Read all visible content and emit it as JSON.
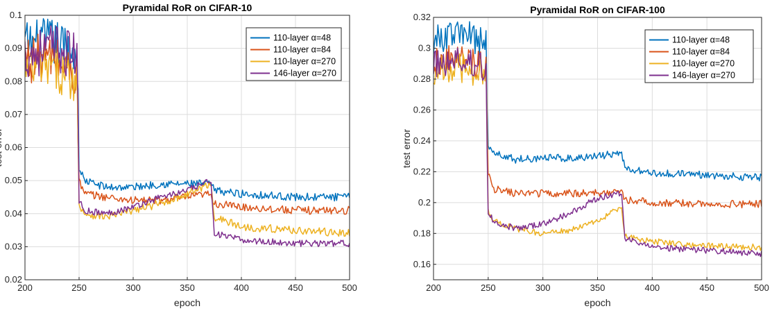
{
  "chart_data": [
    {
      "type": "line",
      "title": "Pyramidal RoR on CIFAR-10",
      "xlabel": "epoch",
      "ylabel": "test error",
      "xlim": [
        200,
        500
      ],
      "ylim": [
        0.02,
        0.1
      ],
      "xticks": [
        200,
        250,
        300,
        350,
        400,
        450,
        500
      ],
      "xtick_labels": [
        "200",
        "250",
        "300",
        "350",
        "400",
        "450",
        "500"
      ],
      "yticks": [
        0.02,
        0.03,
        0.04,
        0.05,
        0.06,
        0.07,
        0.08,
        0.09,
        0.1
      ],
      "ytick_labels": [
        "0.02",
        "0.03",
        "0.04",
        "0.05",
        "0.06",
        "0.07",
        "0.08",
        "0.09",
        "0.1"
      ],
      "grid": true,
      "legend_position": "top-right",
      "series": [
        {
          "name": "110-layer α=48",
          "color": "#0072BD",
          "keypoints": [
            [
              200,
              0.091
            ],
            [
              225,
              0.092
            ],
            [
              248,
              0.088
            ],
            [
              250,
              0.054
            ],
            [
              255,
              0.05
            ],
            [
              275,
              0.048
            ],
            [
              300,
              0.048
            ],
            [
              325,
              0.049
            ],
            [
              350,
              0.049
            ],
            [
              372,
              0.049
            ],
            [
              375,
              0.047
            ],
            [
              400,
              0.046
            ],
            [
              450,
              0.045
            ],
            [
              500,
              0.045
            ]
          ],
          "noise": [
            0.0075,
            0.0012
          ]
        },
        {
          "name": "110-layer α=84",
          "color": "#D95319",
          "keypoints": [
            [
              200,
              0.087
            ],
            [
              225,
              0.087
            ],
            [
              248,
              0.082
            ],
            [
              250,
              0.05
            ],
            [
              255,
              0.046
            ],
            [
              275,
              0.045
            ],
            [
              300,
              0.044
            ],
            [
              325,
              0.044
            ],
            [
              350,
              0.045
            ],
            [
              372,
              0.046
            ],
            [
              375,
              0.043
            ],
            [
              400,
              0.042
            ],
            [
              450,
              0.041
            ],
            [
              500,
              0.041
            ]
          ],
          "noise": [
            0.0075,
            0.0012
          ]
        },
        {
          "name": "110-layer α=270",
          "color": "#EDB120",
          "keypoints": [
            [
              200,
              0.083
            ],
            [
              225,
              0.084
            ],
            [
              248,
              0.08
            ],
            [
              250,
              0.043
            ],
            [
              255,
              0.04
            ],
            [
              275,
              0.039
            ],
            [
              300,
              0.041
            ],
            [
              325,
              0.043
            ],
            [
              350,
              0.046
            ],
            [
              372,
              0.049
            ],
            [
              375,
              0.039
            ],
            [
              400,
              0.036
            ],
            [
              450,
              0.035
            ],
            [
              500,
              0.034
            ]
          ],
          "noise": [
            0.0065,
            0.0012
          ]
        },
        {
          "name": "146-layer α=270",
          "color": "#7E2F8E",
          "keypoints": [
            [
              200,
              0.088
            ],
            [
              225,
              0.09
            ],
            [
              248,
              0.088
            ],
            [
              250,
              0.044
            ],
            [
              255,
              0.041
            ],
            [
              275,
              0.04
            ],
            [
              300,
              0.042
            ],
            [
              325,
              0.045
            ],
            [
              350,
              0.047
            ],
            [
              372,
              0.05
            ],
            [
              375,
              0.034
            ],
            [
              400,
              0.032
            ],
            [
              450,
              0.031
            ],
            [
              500,
              0.031
            ]
          ],
          "noise": [
            0.0075,
            0.001
          ]
        }
      ]
    },
    {
      "type": "line",
      "title": "Pyramidal RoR on CIFAR-100",
      "xlabel": "epoch",
      "ylabel": "test error",
      "xlim": [
        200,
        500
      ],
      "ylim": [
        0.15,
        0.32
      ],
      "xticks": [
        200,
        250,
        300,
        350,
        400,
        450,
        500
      ],
      "xtick_labels": [
        "200",
        "250",
        "300",
        "350",
        "400",
        "450",
        "500"
      ],
      "yticks": [
        0.16,
        0.18,
        0.2,
        0.22,
        0.24,
        0.26,
        0.28,
        0.3,
        0.32
      ],
      "ytick_labels": [
        "0.16",
        "0.18",
        "0.2",
        "0.22",
        "0.24",
        "0.26",
        "0.28",
        "0.3",
        "0.32"
      ],
      "grid": true,
      "legend_position": "top-right",
      "series": [
        {
          "name": "110-layer α=48",
          "color": "#0072BD",
          "keypoints": [
            [
              200,
              0.305
            ],
            [
              225,
              0.31
            ],
            [
              248,
              0.303
            ],
            [
              250,
              0.237
            ],
            [
              255,
              0.232
            ],
            [
              275,
              0.228
            ],
            [
              300,
              0.229
            ],
            [
              325,
              0.229
            ],
            [
              350,
              0.23
            ],
            [
              372,
              0.232
            ],
            [
              375,
              0.222
            ],
            [
              400,
              0.219
            ],
            [
              450,
              0.218
            ],
            [
              500,
              0.216
            ]
          ],
          "noise": [
            0.01,
            0.0025
          ]
        },
        {
          "name": "110-layer α=84",
          "color": "#D95319",
          "keypoints": [
            [
              200,
              0.292
            ],
            [
              225,
              0.293
            ],
            [
              248,
              0.288
            ],
            [
              250,
              0.22
            ],
            [
              255,
              0.209
            ],
            [
              275,
              0.206
            ],
            [
              300,
              0.206
            ],
            [
              325,
              0.206
            ],
            [
              350,
              0.206
            ],
            [
              372,
              0.208
            ],
            [
              375,
              0.202
            ],
            [
              400,
              0.2
            ],
            [
              450,
              0.199
            ],
            [
              500,
              0.199
            ]
          ],
          "noise": [
            0.01,
            0.0025
          ]
        },
        {
          "name": "110-layer α=270",
          "color": "#EDB120",
          "keypoints": [
            [
              200,
              0.285
            ],
            [
              225,
              0.287
            ],
            [
              248,
              0.284
            ],
            [
              250,
              0.195
            ],
            [
              255,
              0.188
            ],
            [
              275,
              0.183
            ],
            [
              300,
              0.18
            ],
            [
              325,
              0.182
            ],
            [
              350,
              0.188
            ],
            [
              372,
              0.197
            ],
            [
              375,
              0.178
            ],
            [
              400,
              0.175
            ],
            [
              450,
              0.172
            ],
            [
              500,
              0.171
            ]
          ],
          "noise": [
            0.01,
            0.002
          ]
        },
        {
          "name": "146-layer α=270",
          "color": "#7E2F8E",
          "keypoints": [
            [
              200,
              0.29
            ],
            [
              225,
              0.292
            ],
            [
              248,
              0.288
            ],
            [
              250,
              0.193
            ],
            [
              255,
              0.188
            ],
            [
              275,
              0.183
            ],
            [
              300,
              0.186
            ],
            [
              325,
              0.193
            ],
            [
              350,
              0.203
            ],
            [
              372,
              0.206
            ],
            [
              375,
              0.177
            ],
            [
              400,
              0.171
            ],
            [
              450,
              0.169
            ],
            [
              500,
              0.167
            ]
          ],
          "noise": [
            0.01,
            0.002
          ]
        }
      ]
    }
  ]
}
